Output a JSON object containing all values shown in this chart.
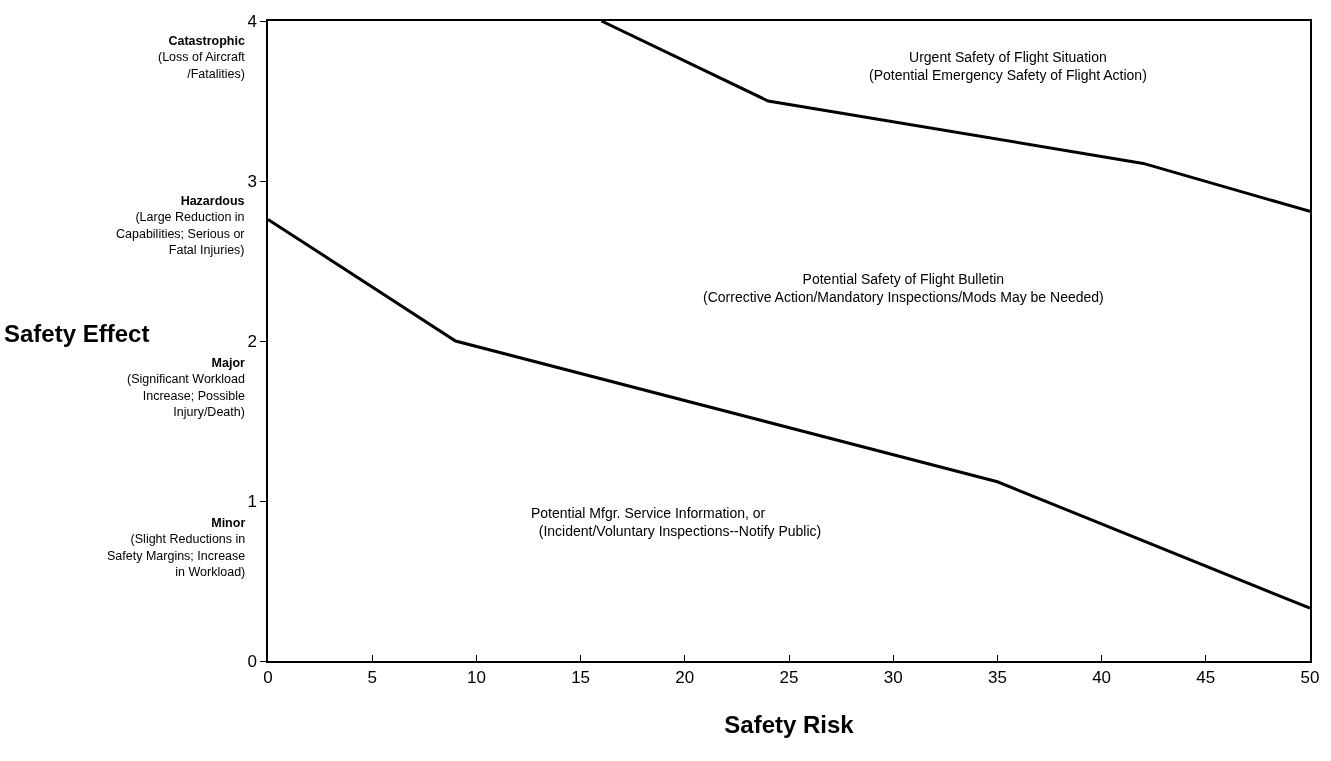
{
  "chart_data": {
    "type": "line",
    "xlabel": "Safety Risk",
    "ylabel": "Safety Effect",
    "series": [
      {
        "color": "#000000",
        "x": [
          16,
          24,
          42,
          50
        ],
        "values": [
          4,
          3.5,
          3.11,
          2.81
        ]
      },
      {
        "color": "#000000",
        "x": [
          0,
          9,
          35,
          50
        ],
        "values": [
          2.76,
          2.0,
          1.12,
          0.33
        ]
      }
    ],
    "xlim": [
      0,
      50
    ],
    "xticks": [
      0,
      5,
      10,
      15,
      20,
      25,
      30,
      35,
      40,
      45,
      50
    ],
    "ylim": [
      0,
      4
    ],
    "yticks": [
      0,
      1,
      2,
      3,
      4
    ],
    "marker": "none",
    "line_style": "solid",
    "annotations": [
      "Catastrophic\n(Loss of Aircraft\n/Fatalities)",
      "Hazardous\n(Large Reduction in\nCapabilities; Serious or\nFatal Injuries)",
      "Major\n(Significant Workload\nIncrease; Possible\nInjury/Death)",
      "Minor\n(Slight Reductions in\nSafety Margins; Increase\nin Workload)",
      "Urgent Safety of Flight Situation\n(Potential Emergency Safety of Flight Action)",
      "Potential Safety of Flight Bulletin\n(Corrective Action/Mandatory Inspections/Mods May be Needed)",
      "Potential Mfgr. Service Information, or\n  (Incident/Voluntary Inspections--Notify Public)"
    ]
  }
}
